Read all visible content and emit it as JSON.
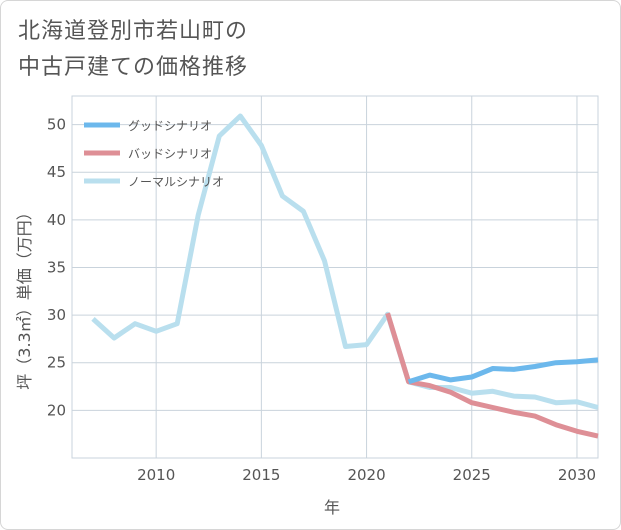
{
  "title_lines": [
    "北海道登別市若山町の",
    "中古戸建ての価格推移"
  ],
  "chart_data": {
    "type": "line",
    "title": "北海道登別市若山町の中古戸建ての価格推移",
    "xlabel": "年",
    "ylabel": "坪（3.3㎡）単価（万円）",
    "xlim": [
      2006,
      2031
    ],
    "ylim": [
      15,
      53
    ],
    "xticks": [
      2010,
      2015,
      2020,
      2025,
      2030
    ],
    "yticks": [
      20,
      25,
      30,
      35,
      40,
      45,
      50
    ],
    "grid": true,
    "legend_position": "top-left",
    "series": [
      {
        "name": "グッドシナリオ",
        "color": "#6cb8ec",
        "x": [
          2022,
          2023,
          2024,
          2025,
          2026,
          2027,
          2028,
          2029,
          2030,
          2031
        ],
        "y": [
          23.0,
          23.7,
          23.2,
          23.5,
          24.4,
          24.3,
          24.6,
          25.0,
          25.1,
          25.3
        ]
      },
      {
        "name": "バッドシナリオ",
        "color": "#de8f96",
        "x": [
          2021,
          2022,
          2023,
          2024,
          2025,
          2026,
          2027,
          2028,
          2029,
          2030,
          2031
        ],
        "y": [
          30.2,
          23.0,
          22.6,
          21.9,
          20.8,
          20.3,
          19.8,
          19.4,
          18.5,
          17.8,
          17.3
        ]
      },
      {
        "name": "ノーマルシナリオ",
        "color": "#b9dfee",
        "x": [
          2007,
          2008,
          2009,
          2010,
          2011,
          2012,
          2013,
          2014,
          2015,
          2016,
          2017,
          2018,
          2019,
          2020,
          2021,
          2022,
          2023,
          2024,
          2025,
          2026,
          2027,
          2028,
          2029,
          2030,
          2031
        ],
        "y": [
          29.6,
          27.6,
          29.1,
          28.3,
          29.1,
          40.5,
          48.8,
          50.9,
          47.8,
          42.5,
          40.9,
          35.7,
          26.7,
          26.9,
          30.1,
          23.0,
          22.4,
          22.4,
          21.8,
          22.0,
          21.5,
          21.4,
          20.8,
          20.9,
          20.3
        ]
      }
    ]
  }
}
